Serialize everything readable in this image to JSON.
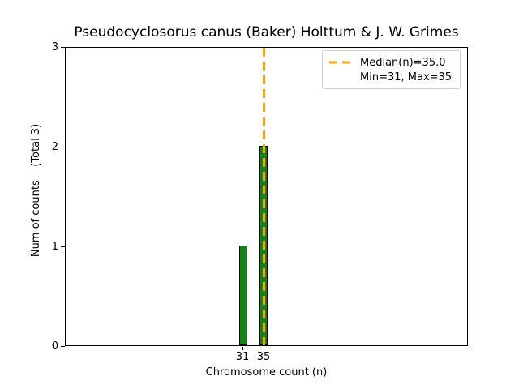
{
  "chart_data": {
    "type": "bar",
    "title": "Pseudocyclosorus canus (Baker) Holttum & J. W. Grimes",
    "xlabel": "Chromosome count (n)",
    "ylabel": "Num of counts    (Total 3)",
    "categories": [
      "31",
      "35"
    ],
    "values": [
      1,
      2
    ],
    "ylim": [
      0,
      3
    ],
    "yticks": [
      "0",
      "1",
      "2",
      "3"
    ],
    "xticks": [
      "31",
      "35"
    ],
    "grid": false,
    "bar_color": "#118511",
    "bar_edge_color": "#000000",
    "median_line": {
      "value": 35.0,
      "color": "#FFA500",
      "style": "dashed",
      "at_category": "35"
    },
    "stats": {
      "median_n": "35.0",
      "min": "31",
      "max": "35",
      "total": "3"
    },
    "legend": {
      "position": "upper right",
      "items": [
        {
          "swatch": "orange-dashed-line",
          "label": "Median(n)=35.0"
        },
        {
          "swatch": "none",
          "label": "Min=31, Max=35"
        }
      ]
    }
  }
}
